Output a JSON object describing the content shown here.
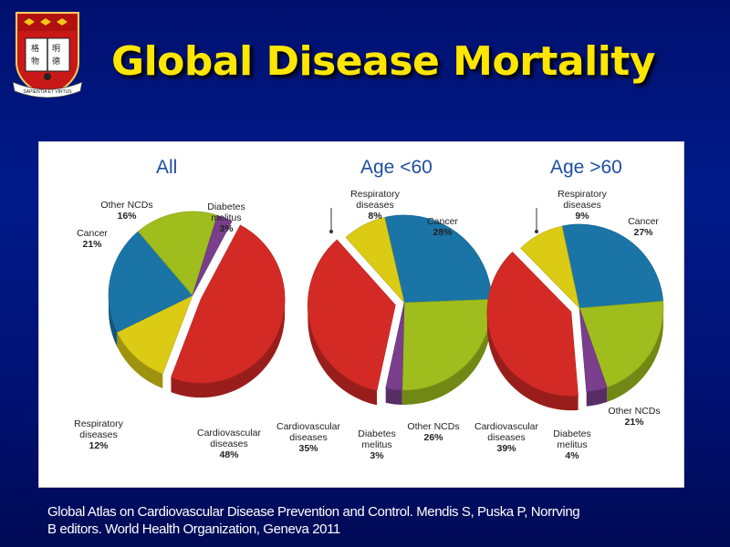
{
  "slide": {
    "title": "Global Disease Mortality",
    "crest_motto": "SAPIENTIA ET VIRTUS",
    "crest_chars": [
      "格",
      "物",
      "明",
      "德"
    ],
    "citation_line1": "Global Atlas on Cardiovascular Disease Prevention and Control. Mendis S, Puska P, Norrving",
    "citation_line2": "B editors. World Health Organization, Geneva 2011"
  },
  "colors": {
    "Cardiovascular diseases": "#d42a26",
    "Cancer": "#1a74a6",
    "Other NCDs": "#9fbd1d",
    "Respiratory diseases": "#dccb15",
    "Diabetes melitus": "#7a3e8c",
    "Diabetes melitus ": "#7a3e8c"
  },
  "chart_data": [
    {
      "type": "pie",
      "title": "All",
      "slices": [
        {
          "label": "Cardiovascular diseases",
          "value": 48,
          "display": "48%"
        },
        {
          "label": "Respiratory diseases",
          "value": 12,
          "display": "12%"
        },
        {
          "label": "Cancer",
          "value": 21,
          "display": "21%"
        },
        {
          "label": "Other NCDs",
          "value": 16,
          "display": "16%"
        },
        {
          "label": "Diabetes melitus",
          "value": 3,
          "display": "3%"
        }
      ]
    },
    {
      "type": "pie",
      "title": "Age <60",
      "slices": [
        {
          "label": "Cancer",
          "value": 28,
          "display": "28%"
        },
        {
          "label": "Other NCDs",
          "value": 26,
          "display": "26%"
        },
        {
          "label": "Diabetes melitus",
          "value": 3,
          "display": "3%"
        },
        {
          "label": "Cardiovascular diseases",
          "value": 35,
          "display": "35%"
        },
        {
          "label": "Respiratory diseases",
          "value": 8,
          "display": "8%"
        }
      ]
    },
    {
      "type": "pie",
      "title": "Age >60",
      "slices": [
        {
          "label": "Cancer",
          "value": 27,
          "display": "27%"
        },
        {
          "label": "Other NCDs",
          "value": 21,
          "display": "21%"
        },
        {
          "label": "Diabetes melitus",
          "value": 4,
          "display": "4%"
        },
        {
          "label": "Cardiovascular diseases",
          "value": 39,
          "display": "39%"
        },
        {
          "label": "Respiratory diseases",
          "value": 9,
          "display": "9%"
        }
      ]
    }
  ]
}
